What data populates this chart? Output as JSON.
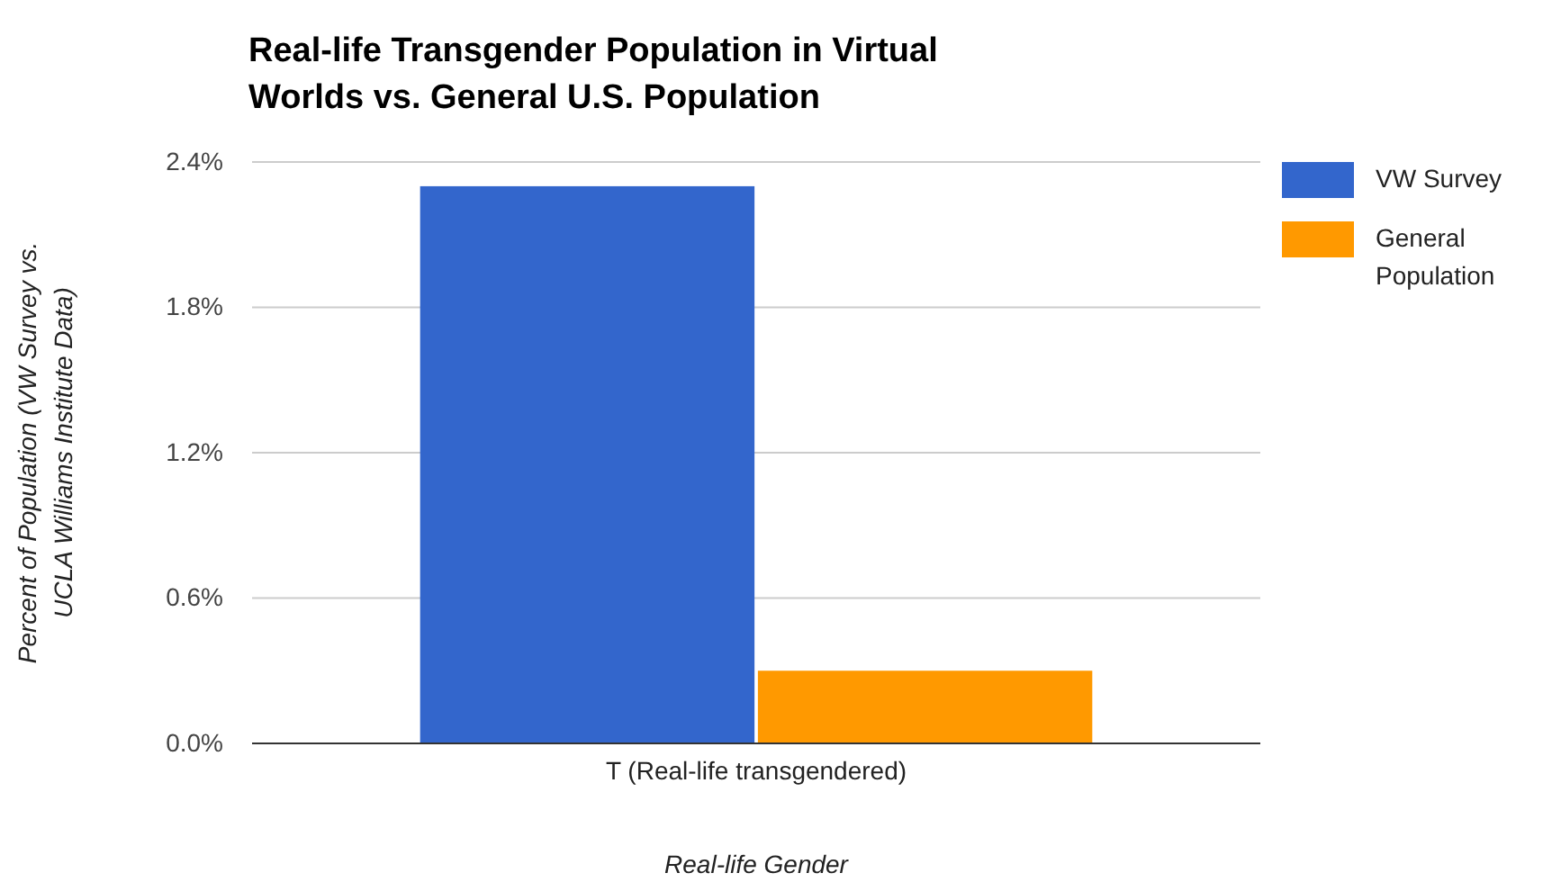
{
  "chart_data": {
    "type": "bar",
    "title": "Real-life Transgender Population in Virtual Worlds vs. General U.S. Population",
    "xlabel": "Real-life Gender",
    "ylabel": "Percent of Population (VW Survey vs. UCLA Williams Institute Data)",
    "categories": [
      "T (Real-life transgendered)"
    ],
    "series": [
      {
        "name": "VW Survey",
        "color": "#3366cc",
        "values": [
          2.3
        ]
      },
      {
        "name": "General Population",
        "color": "#ff9900",
        "values": [
          0.3
        ]
      }
    ],
    "ylim": [
      0,
      2.4
    ],
    "yticks": [
      {
        "value": 0,
        "label": "0.0%"
      },
      {
        "value": 0.6,
        "label": "0.6%"
      },
      {
        "value": 1.2,
        "label": "1.2%"
      },
      {
        "value": 1.8,
        "label": "1.8%"
      },
      {
        "value": 2.4,
        "label": "2.4%"
      }
    ],
    "grid": "y",
    "legend": "right"
  }
}
